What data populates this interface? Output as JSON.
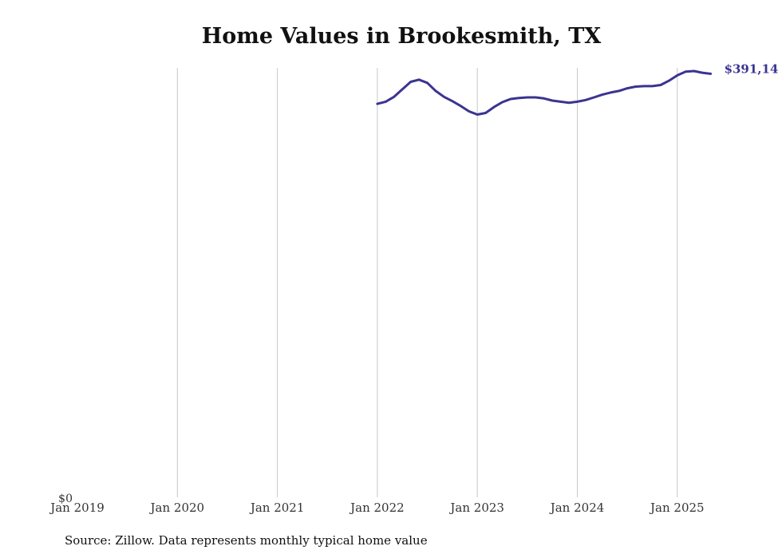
{
  "chart_data": {
    "type": "line",
    "title": "Home Values in Brookesmith, TX",
    "source": "Source: Zillow. Data represents monthly typical home value",
    "x_ticks": [
      "Jan 2019",
      "Jan 2020",
      "Jan 2021",
      "Jan 2022",
      "Jan 2023",
      "Jan 2024",
      "Jan 2025"
    ],
    "y_ticks": [
      {
        "value": 0,
        "label": "$0"
      }
    ],
    "ylim": [
      0,
      400000
    ],
    "xlim": [
      "Jan 2019",
      "Jun 2025"
    ],
    "grid": "vertical",
    "line_color": "#3a3491",
    "end_label": "$391,14",
    "series": [
      {
        "x": [
          "2022-01",
          "2022-02",
          "2022-03",
          "2022-04",
          "2022-05",
          "2022-06",
          "2022-07",
          "2022-08",
          "2022-09",
          "2022-10",
          "2022-11",
          "2022-12",
          "2023-01",
          "2023-02",
          "2023-03",
          "2023-04",
          "2023-05",
          "2023-06",
          "2023-07",
          "2023-08",
          "2023-09",
          "2023-10",
          "2023-11",
          "2023-12",
          "2024-01",
          "2024-02",
          "2024-03",
          "2024-04",
          "2024-05",
          "2024-06",
          "2024-07",
          "2024-08",
          "2024-09",
          "2024-10",
          "2024-11",
          "2024-12",
          "2025-01",
          "2025-02",
          "2025-03",
          "2025-04",
          "2025-05"
        ],
        "values": [
          366500,
          368500,
          373000,
          380000,
          387000,
          389000,
          386000,
          378500,
          373000,
          369000,
          364500,
          359500,
          356500,
          358000,
          363500,
          368000,
          371000,
          372000,
          372500,
          372500,
          371500,
          369500,
          368500,
          367500,
          368500,
          370000,
          372500,
          375000,
          377000,
          378500,
          381000,
          382500,
          383000,
          383000,
          384000,
          388000,
          393000,
          396500,
          397000,
          395500,
          394500
        ]
      }
    ]
  }
}
